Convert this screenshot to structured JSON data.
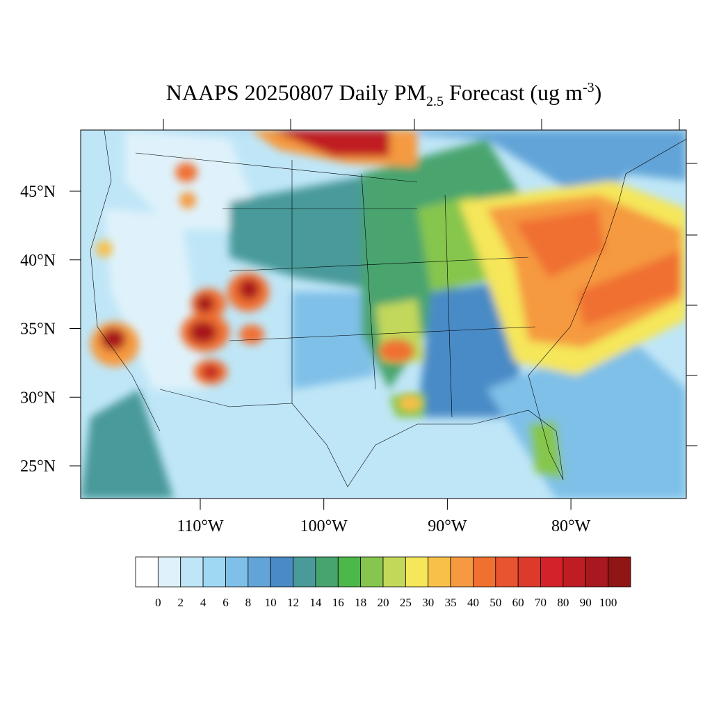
{
  "title": {
    "main": "NAAPS 20250807 Daily PM",
    "sub": "2.5",
    "middle": " Forecast (ug m",
    "sup": "-3",
    "end": ")"
  },
  "lon_ticks": [
    {
      "value": -110,
      "label": "110°W"
    },
    {
      "value": -100,
      "label": "100°W"
    },
    {
      "value": -90,
      "label": "90°W"
    },
    {
      "value": -80,
      "label": "80°W"
    }
  ],
  "lat_ticks": [
    {
      "value": 45,
      "label": "45°N"
    },
    {
      "value": 40,
      "label": "40°N"
    },
    {
      "value": 35,
      "label": "35°N"
    },
    {
      "value": 30,
      "label": "30°N"
    },
    {
      "value": 25,
      "label": "25°N"
    }
  ],
  "colorbar": {
    "colors": [
      "#ffffff",
      "#dff2fb",
      "#bfe6f7",
      "#9fd8f3",
      "#7fc0e8",
      "#62a4d8",
      "#4a8bc6",
      "#4a9a9a",
      "#48a46e",
      "#4cb84a",
      "#86c64e",
      "#c2d85a",
      "#f5e65a",
      "#f8c048",
      "#f59a40",
      "#f07030",
      "#e85430",
      "#dc3a2a",
      "#d4222a",
      "#c01c24",
      "#a8181e",
      "#901616"
    ],
    "levels": [
      0,
      2,
      4,
      6,
      8,
      10,
      12,
      14,
      16,
      18,
      20,
      25,
      30,
      35,
      40,
      50,
      60,
      70,
      80,
      90,
      100
    ]
  }
}
